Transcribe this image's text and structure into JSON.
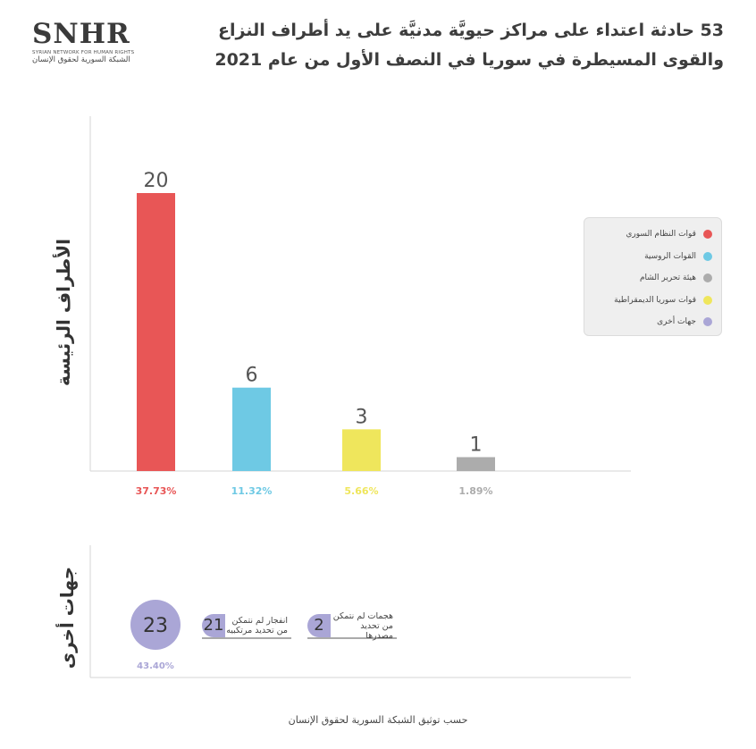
{
  "logo": {
    "main": "SNHR",
    "english": "SYRIAN NETWORK FOR HUMAN RIGHTS",
    "arabic": "الشبكة السورية لحقوق الإنسان"
  },
  "title": "53 حادثة اعتداء على مراكز حيويَّة مدنيَّة على يد أطراف النزاع والقوى المسيطرة في سوريا في النصف الأول من عام 2021",
  "chart_data": [
    {
      "type": "bar",
      "ylabel": "الأطراف الرئيسة",
      "series": [
        {
          "name": "قوات النظام السوري",
          "value": 20,
          "percent": "37.73%",
          "color": "#e85656"
        },
        {
          "name": "القوات الروسية",
          "value": 6,
          "percent": "11.32%",
          "color": "#6ec9e4"
        },
        {
          "name": "قوات سوريا الديمقراطية",
          "value": 3,
          "percent": "5.66%",
          "color": "#efe65c"
        },
        {
          "name": "هيئة تحرير الشام",
          "value": 1,
          "percent": "1.89%",
          "color": "#acacac"
        }
      ],
      "ylim": [
        0,
        20
      ],
      "grid": false,
      "legend_position": "right",
      "legend": [
        {
          "label": "قوات النظام السوري",
          "color": "#e85656"
        },
        {
          "label": "القوات الروسية",
          "color": "#6ec9e4"
        },
        {
          "label": "هيئة تحرير الشام",
          "color": "#acacac"
        },
        {
          "label": "قوات سوريا الديمقراطية",
          "color": "#efe65c"
        },
        {
          "label": "جهات أخرى",
          "color": "#aaa6d6"
        }
      ]
    },
    {
      "type": "table",
      "ylabel": "جهات أخرى",
      "total": {
        "value": 23,
        "percent": "43.40%",
        "color": "#aaa6d6"
      },
      "breakdown": [
        {
          "value": 21,
          "label": "انفجار لم نتمكن من تحديد مرتكبيه"
        },
        {
          "value": 2,
          "label": "هجمات لم نتمكن من تحديد مصدرها"
        }
      ]
    }
  ],
  "source": "حسب توثيق الشبكة السورية لحقوق الإنسان"
}
